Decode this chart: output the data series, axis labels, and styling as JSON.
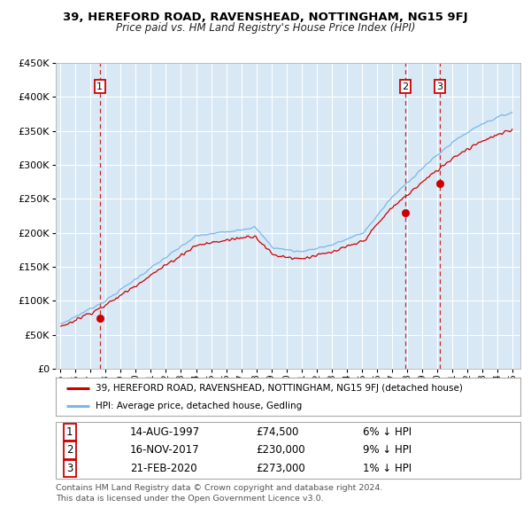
{
  "title": "39, HEREFORD ROAD, RAVENSHEAD, NOTTINGHAM, NG15 9FJ",
  "subtitle": "Price paid vs. HM Land Registry's House Price Index (HPI)",
  "sale_label": "39, HEREFORD ROAD, RAVENSHEAD, NOTTINGHAM, NG15 9FJ (detached house)",
  "hpi_label": "HPI: Average price, detached house, Gedling",
  "transaction_dates_float": [
    1997.619,
    2017.877,
    2020.137
  ],
  "transaction_prices": [
    74500,
    230000,
    273000
  ],
  "transaction_dates_display": [
    "14-AUG-1997",
    "16-NOV-2017",
    "21-FEB-2020"
  ],
  "transaction_prices_display": [
    "£74,500",
    "£230,000",
    "£273,000"
  ],
  "transaction_hpi_diffs": [
    "6% ↓ HPI",
    "9% ↓ HPI",
    "1% ↓ HPI"
  ],
  "hpi_color": "#7ab8e8",
  "sale_color": "#cc0000",
  "vline_color_1": "#cc0000",
  "vline_color_23": "#cc0000",
  "marker_color": "#cc0000",
  "plot_bg": "#d8e8f5",
  "fig_bg": "#ffffff",
  "grid_color": "#ffffff",
  "footer": "Contains HM Land Registry data © Crown copyright and database right 2024.\nThis data is licensed under the Open Government Licence v3.0.",
  "ylim": [
    0,
    450000
  ],
  "yticks": [
    0,
    50000,
    100000,
    150000,
    200000,
    250000,
    300000,
    350000,
    400000,
    450000
  ],
  "xmin": 1994.7,
  "xmax": 2025.5
}
